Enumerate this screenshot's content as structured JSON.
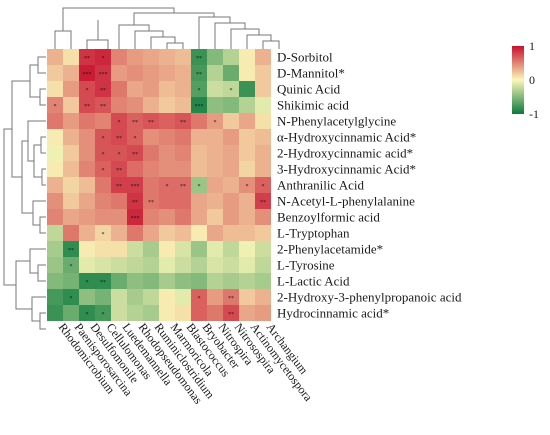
{
  "chart_data": {
    "type": "heatmap",
    "title": "",
    "xlabel": "",
    "ylabel": "",
    "rows": [
      "D-Sorbitol",
      "D-Mannitol*",
      "Quinic Acid",
      "Shikimic acid",
      "N-Phenylacetylglycine",
      "α-Hydroxycinnamic Acid*",
      "2-Hydroxycinnamic acid*",
      "3-Hydroxycinnamic Acid*",
      "Anthranilic Acid",
      "N-Acetyl-L-phenylalanine",
      "Benzoylformic acid",
      "L-Tryptophan",
      "2-Phenylacetamide*",
      "L-Tyrosine",
      "L-Lactic Acid",
      "2-Hydroxy-3-phenylpropanoic acid",
      "Hydrocinnamic acid*"
    ],
    "columns": [
      "Rhodomicrobium",
      "Paenisporosarcina",
      "Desulfomonile",
      "Cellulomonas",
      "Luedemannella",
      "Rhodopseudomonas",
      "Ruminiclostridium",
      "Marmoricola",
      "Blastococcus",
      "Bryobacter",
      "Nitrospira",
      "Nitrosospira",
      "Actinomycetospora",
      "Archangium"
    ],
    "values": [
      [
        0.3,
        0.1,
        0.85,
        0.9,
        0.5,
        0.4,
        0.35,
        0.3,
        0.25,
        -0.8,
        -0.5,
        -0.3,
        0.05,
        0.3
      ],
      [
        0.2,
        0.3,
        0.95,
        0.85,
        0.4,
        0.45,
        0.4,
        0.35,
        0.3,
        -0.75,
        -0.3,
        -0.6,
        0.05,
        0.2
      ],
      [
        0.1,
        0.4,
        0.75,
        0.85,
        0.55,
        0.35,
        0.4,
        0.25,
        0.3,
        -0.7,
        -0.2,
        -0.25,
        -0.8,
        0.2
      ],
      [
        0.5,
        0.2,
        0.75,
        0.7,
        0.5,
        0.45,
        0.3,
        0.2,
        0.25,
        -0.9,
        -0.45,
        -0.5,
        -0.3,
        -0.1
      ],
      [
        0.55,
        0.4,
        0.55,
        0.5,
        0.75,
        0.65,
        0.7,
        0.65,
        0.7,
        0.55,
        0.4,
        0.2,
        0.35,
        0.1
      ],
      [
        0.05,
        0.3,
        0.45,
        0.7,
        0.75,
        0.65,
        0.45,
        0.5,
        0.55,
        0.3,
        0.3,
        0.4,
        0.2,
        0.25
      ],
      [
        -0.05,
        0.2,
        0.45,
        0.7,
        0.7,
        0.75,
        0.55,
        0.45,
        0.5,
        0.25,
        0.3,
        0.35,
        0.2,
        0.3
      ],
      [
        0.05,
        0.25,
        0.5,
        0.65,
        0.75,
        0.6,
        0.5,
        0.45,
        0.45,
        0.25,
        0.3,
        0.35,
        0.15,
        0.3
      ],
      [
        0.3,
        0.15,
        0.25,
        0.55,
        0.8,
        0.8,
        0.55,
        0.6,
        0.6,
        -0.4,
        0.35,
        0.3,
        0.45,
        0.65
      ],
      [
        0.45,
        0.2,
        0.35,
        0.5,
        0.55,
        0.85,
        0.55,
        0.6,
        0.6,
        0.35,
        0.3,
        0.4,
        0.3,
        0.8
      ],
      [
        0.5,
        0.35,
        0.4,
        0.45,
        0.45,
        0.9,
        0.5,
        0.45,
        0.55,
        0.35,
        0.2,
        0.4,
        0.3,
        0.45
      ],
      [
        -0.25,
        0.55,
        0.3,
        0.15,
        0.3,
        0.55,
        0.35,
        0.2,
        0.25,
        0.05,
        0.35,
        0.25,
        0.25,
        0.2
      ],
      [
        -0.35,
        -0.85,
        0.05,
        0.1,
        0.1,
        -0.2,
        -0.35,
        0.05,
        -0.15,
        -0.4,
        -0.1,
        -0.25,
        -0.05,
        -0.2
      ],
      [
        -0.4,
        -0.6,
        -0.1,
        -0.15,
        -0.2,
        -0.25,
        -0.3,
        -0.1,
        -0.2,
        -0.3,
        -0.15,
        -0.2,
        -0.1,
        -0.25
      ],
      [
        -0.5,
        -0.55,
        -0.85,
        -0.85,
        -0.6,
        -0.45,
        -0.5,
        -0.35,
        -0.45,
        -0.5,
        -0.3,
        -0.35,
        -0.3,
        -0.35
      ],
      [
        -0.75,
        -0.85,
        -0.45,
        -0.55,
        -0.2,
        -0.35,
        -0.25,
        0.05,
        -0.1,
        0.65,
        0.4,
        0.55,
        0.2,
        0.3
      ],
      [
        -0.8,
        -0.6,
        -0.85,
        -0.75,
        -0.2,
        -0.3,
        -0.35,
        0.05,
        0.1,
        0.65,
        0.55,
        0.75,
        0.35,
        0.4
      ]
    ],
    "significance": [
      [
        "",
        "",
        "**",
        "*",
        "",
        "",
        "",
        "",
        "",
        "**",
        "",
        "",
        "",
        ""
      ],
      [
        "",
        "",
        "***",
        "***",
        "",
        "",
        "",
        "",
        "",
        "**",
        "",
        "",
        "",
        ""
      ],
      [
        "",
        "",
        "*",
        "**",
        "",
        "",
        "",
        "",
        "",
        "*",
        "",
        "*",
        "",
        ""
      ],
      [
        "*",
        "",
        "**",
        "**",
        "",
        "",
        "",
        "",
        "",
        "***",
        "",
        "",
        "",
        ""
      ],
      [
        "",
        "",
        "",
        "",
        "*",
        "**",
        "**",
        "",
        "**",
        "",
        "*",
        "",
        "",
        ""
      ],
      [
        "",
        "",
        "",
        "*",
        "**",
        "*",
        "",
        "",
        "",
        "",
        "",
        "",
        "",
        ""
      ],
      [
        "",
        "",
        "",
        "*",
        "*",
        "**",
        "",
        "",
        "",
        "",
        "",
        "",
        "",
        ""
      ],
      [
        "",
        "",
        "",
        "*",
        "**",
        "",
        "",
        "",
        "",
        "",
        "",
        "",
        "",
        ""
      ],
      [
        "",
        "",
        "",
        "",
        "**",
        "***",
        "",
        "*",
        "**",
        "*",
        "",
        "",
        "*",
        "*"
      ],
      [
        "",
        "",
        "",
        "",
        "",
        "**",
        "**",
        "",
        "",
        "",
        "",
        "",
        "",
        "**"
      ],
      [
        "",
        "",
        "",
        "",
        "",
        "***",
        "",
        "",
        "",
        "",
        "",
        "",
        "",
        ""
      ],
      [
        "",
        "",
        "",
        "*",
        "",
        "",
        "",
        "",
        "",
        "",
        "",
        "",
        "",
        ""
      ],
      [
        "",
        "**",
        "",
        "",
        "",
        "",
        "",
        "",
        "",
        "",
        "",
        "",
        "",
        ""
      ],
      [
        "",
        "*",
        "",
        "",
        "",
        "",
        "",
        "",
        "",
        "",
        "",
        "",
        "",
        ""
      ],
      [
        "",
        "",
        "*",
        "**",
        "",
        "",
        "",
        "",
        "",
        "",
        "",
        "",
        "",
        ""
      ],
      [
        "",
        "*",
        "",
        "",
        "",
        "",
        "",
        "",
        "",
        "*",
        "",
        "**",
        "",
        ""
      ],
      [
        "",
        "",
        "*",
        "*",
        "",
        "",
        "",
        "",
        "",
        "",
        "",
        "**",
        "",
        ""
      ]
    ],
    "color_scale": {
      "min": -1,
      "max": 1,
      "ticks": [
        "1",
        "0",
        "-1"
      ],
      "low_color": "#0a7a3c",
      "mid_color": "#fbf7b8",
      "high_color": "#c8102e"
    },
    "legend": "top-right",
    "row_dendrogram": "left",
    "column_dendrogram": "top"
  }
}
